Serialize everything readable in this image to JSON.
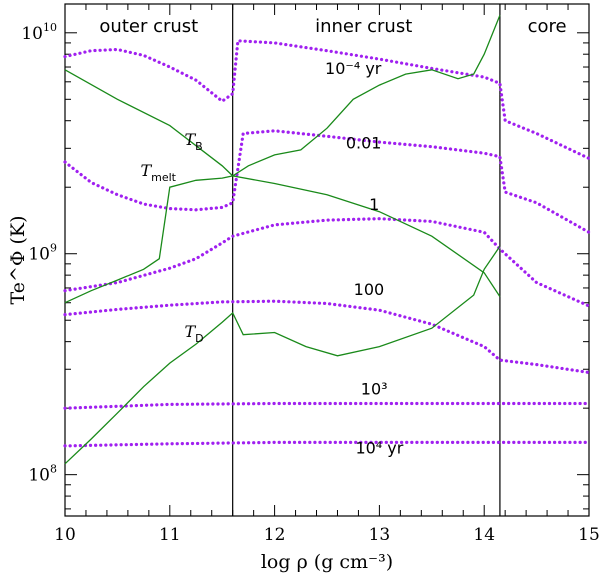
{
  "chart_data": {
    "type": "line",
    "xlabel": "log ρ (g cm⁻³)",
    "ylabel": "Te^Φ (K)",
    "xlim": [
      10,
      15
    ],
    "ylim": [
      65000000,
      13500000000
    ],
    "yscale": "log",
    "x_ticks": [
      {
        "value": 10,
        "label": "10"
      },
      {
        "value": 11,
        "label": "11"
      },
      {
        "value": 12,
        "label": "12"
      },
      {
        "value": 13,
        "label": "13"
      },
      {
        "value": 14,
        "label": "14"
      },
      {
        "value": 15,
        "label": "15"
      }
    ],
    "y_major_ticks": [
      {
        "value": 100000000,
        "base": "10",
        "exp": "8"
      },
      {
        "value": 1000000000,
        "base": "10",
        "exp": "9"
      },
      {
        "value": 10000000000,
        "base": "10",
        "exp": "10"
      }
    ],
    "regions": [
      {
        "name": "outer crust",
        "x_center": 10.8
      },
      {
        "name": "inner crust",
        "x_center": 12.85
      },
      {
        "name": "core",
        "x_center": 14.6
      }
    ],
    "boundaries": [
      11.6,
      14.15
    ],
    "colors": {
      "profile": "#a020f0",
      "solid": "#1a8a1a",
      "boundary": "#000000"
    },
    "series": [
      {
        "style": "dotted",
        "color": "#a020f0",
        "points": [
          [
            10,
            7800000000.0
          ],
          [
            10.25,
            8300000000.0
          ],
          [
            10.5,
            8400000000.0
          ],
          [
            10.75,
            7900000000.0
          ],
          [
            11,
            7000000000.0
          ],
          [
            11.25,
            6100000000.0
          ],
          [
            11.5,
            4900000000.0
          ],
          [
            11.6,
            5300000000.0
          ],
          [
            11.65,
            9200000000.0
          ],
          [
            12,
            9000000000.0
          ],
          [
            12.5,
            8300000000.0
          ],
          [
            13,
            7600000000.0
          ],
          [
            13.5,
            6900000000.0
          ],
          [
            14,
            6300000000.0
          ],
          [
            14.15,
            5900000000.0
          ],
          [
            14.2,
            4000000000.0
          ],
          [
            14.5,
            3500000000.0
          ],
          [
            15,
            2700000000.0
          ]
        ]
      },
      {
        "style": "dotted",
        "color": "#a020f0",
        "points": [
          [
            10,
            2600000000.0
          ],
          [
            10.25,
            2100000000.0
          ],
          [
            10.5,
            1850000000.0
          ],
          [
            10.75,
            1680000000.0
          ],
          [
            11,
            1600000000.0
          ],
          [
            11.25,
            1580000000.0
          ],
          [
            11.5,
            1620000000.0
          ],
          [
            11.6,
            1700000000.0
          ],
          [
            11.7,
            3500000000.0
          ],
          [
            12,
            3600000000.0
          ],
          [
            12.5,
            3400000000.0
          ],
          [
            13,
            3200000000.0
          ],
          [
            13.5,
            3050000000.0
          ],
          [
            14,
            2850000000.0
          ],
          [
            14.15,
            2750000000.0
          ],
          [
            14.2,
            1900000000.0
          ],
          [
            14.5,
            1700000000.0
          ],
          [
            15,
            1250000000.0
          ]
        ]
      },
      {
        "style": "dotted",
        "color": "#a020f0",
        "points": [
          [
            10,
            680000000.0
          ],
          [
            10.5,
            740000000.0
          ],
          [
            11,
            860000000.0
          ],
          [
            11.25,
            950000000.0
          ],
          [
            11.5,
            1120000000.0
          ],
          [
            11.6,
            1200000000.0
          ],
          [
            12,
            1350000000.0
          ],
          [
            12.5,
            1420000000.0
          ],
          [
            13,
            1440000000.0
          ],
          [
            13.5,
            1400000000.0
          ],
          [
            14,
            1250000000.0
          ],
          [
            14.15,
            1050000000.0
          ],
          [
            14.5,
            740000000.0
          ],
          [
            15,
            580000000.0
          ]
        ]
      },
      {
        "style": "dotted",
        "color": "#a020f0",
        "points": [
          [
            10,
            530000000.0
          ],
          [
            10.5,
            560000000.0
          ],
          [
            11,
            585000000.0
          ],
          [
            11.5,
            605000000.0
          ],
          [
            12,
            610000000.0
          ],
          [
            12.5,
            595000000.0
          ],
          [
            13,
            555000000.0
          ],
          [
            13.5,
            480000000.0
          ],
          [
            14,
            380000000.0
          ],
          [
            14.15,
            330000000.0
          ],
          [
            14.5,
            315000000.0
          ],
          [
            15,
            290000000.0
          ]
        ]
      },
      {
        "style": "dotted",
        "color": "#a020f0",
        "points": [
          [
            10,
            200000000.0
          ],
          [
            11,
            208000000.0
          ],
          [
            12,
            210000000.0
          ],
          [
            13,
            210000000.0
          ],
          [
            14,
            210000000.0
          ],
          [
            15,
            210000000.0
          ]
        ]
      },
      {
        "style": "dotted",
        "color": "#a020f0",
        "points": [
          [
            10,
            135000000.0
          ],
          [
            11,
            138000000.0
          ],
          [
            12,
            140000000.0
          ],
          [
            13,
            140000000.0
          ],
          [
            14,
            140000000.0
          ],
          [
            15,
            140000000.0
          ]
        ]
      },
      {
        "style": "solid",
        "color": "#1a8a1a",
        "points": [
          [
            10,
            6800000000.0
          ],
          [
            10.5,
            5000000000.0
          ],
          [
            11,
            3800000000.0
          ],
          [
            11.5,
            2500000000.0
          ],
          [
            11.6,
            2250000000.0
          ],
          [
            12,
            2080000000.0
          ],
          [
            12.5,
            1850000000.0
          ],
          [
            13,
            1550000000.0
          ],
          [
            13.5,
            1200000000.0
          ],
          [
            14,
            820000000.0
          ],
          [
            14.15,
            640000000.0
          ]
        ]
      },
      {
        "style": "solid",
        "color": "#1a8a1a",
        "points": [
          [
            10,
            600000000.0
          ],
          [
            10.25,
            680000000.0
          ],
          [
            10.5,
            760000000.0
          ],
          [
            10.75,
            850000000.0
          ],
          [
            10.9,
            950000000.0
          ],
          [
            11,
            2000000000.0
          ],
          [
            11.25,
            2150000000.0
          ],
          [
            11.5,
            2200000000.0
          ],
          [
            11.6,
            2250000000.0
          ],
          [
            11.75,
            2500000000.0
          ],
          [
            12,
            2800000000.0
          ],
          [
            12.25,
            2950000000.0
          ],
          [
            12.5,
            3700000000.0
          ],
          [
            12.75,
            5000000000.0
          ],
          [
            13,
            5800000000.0
          ],
          [
            13.25,
            6500000000.0
          ],
          [
            13.5,
            6800000000.0
          ],
          [
            13.75,
            6200000000.0
          ],
          [
            13.9,
            6500000000.0
          ],
          [
            14,
            8000000000.0
          ],
          [
            14.15,
            12000000000.0
          ]
        ]
      },
      {
        "style": "solid",
        "color": "#1a8a1a",
        "points": [
          [
            10,
            112000000.0
          ],
          [
            10.25,
            145000000.0
          ],
          [
            10.5,
            190000000.0
          ],
          [
            10.75,
            250000000.0
          ],
          [
            11,
            320000000.0
          ],
          [
            11.25,
            390000000.0
          ],
          [
            11.5,
            490000000.0
          ],
          [
            11.6,
            540000000.0
          ],
          [
            11.7,
            430000000.0
          ],
          [
            12,
            440000000.0
          ],
          [
            12.3,
            380000000.0
          ],
          [
            12.6,
            345000000.0
          ],
          [
            13,
            380000000.0
          ],
          [
            13.5,
            460000000.0
          ],
          [
            13.9,
            650000000.0
          ],
          [
            14,
            850000000.0
          ],
          [
            14.15,
            1080000000.0
          ]
        ]
      }
    ],
    "annotations": [
      {
        "text": "10⁻⁴ yr",
        "x": 12.75,
        "y": 6500000000.0
      },
      {
        "text": "0.01",
        "x": 12.85,
        "y": 3000000000.0
      },
      {
        "text": "1",
        "x": 12.95,
        "y": 1580000000.0
      },
      {
        "text": "100",
        "x": 12.9,
        "y": 650000000.0
      },
      {
        "text": "10³",
        "x": 12.95,
        "y": 230000000.0
      },
      {
        "text": "10⁴ yr",
        "x": 13.0,
        "y": 125000000.0
      }
    ],
    "curve_labels": [
      {
        "main": "T",
        "sub": "B",
        "x": 11.14,
        "y": 3100000000.0
      },
      {
        "main": "T",
        "sub": "melt",
        "x": 10.72,
        "y": 2250000000.0
      },
      {
        "main": "T",
        "sub": "D",
        "x": 11.14,
        "y": 420000000.0
      }
    ]
  }
}
